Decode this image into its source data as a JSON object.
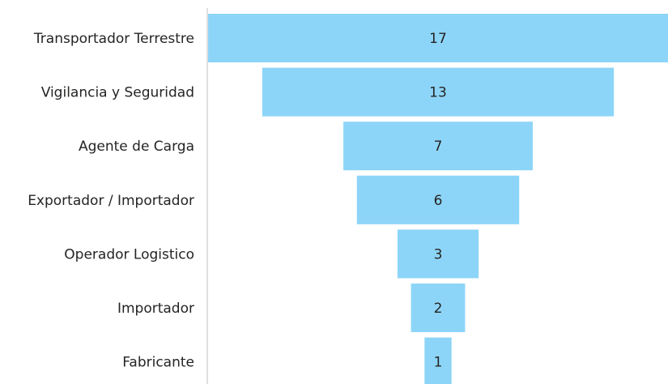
{
  "chart_data": {
    "type": "funnel",
    "categories": [
      "Transportador Terrestre",
      "Vigilancia y Seguridad",
      "Agente de Carga",
      "Exportador / Importador",
      "Operador Logistico",
      "Importador",
      "Fabricante"
    ],
    "values": [
      17,
      13,
      7,
      6,
      3,
      2,
      1
    ],
    "color": "#8dd5f8"
  }
}
